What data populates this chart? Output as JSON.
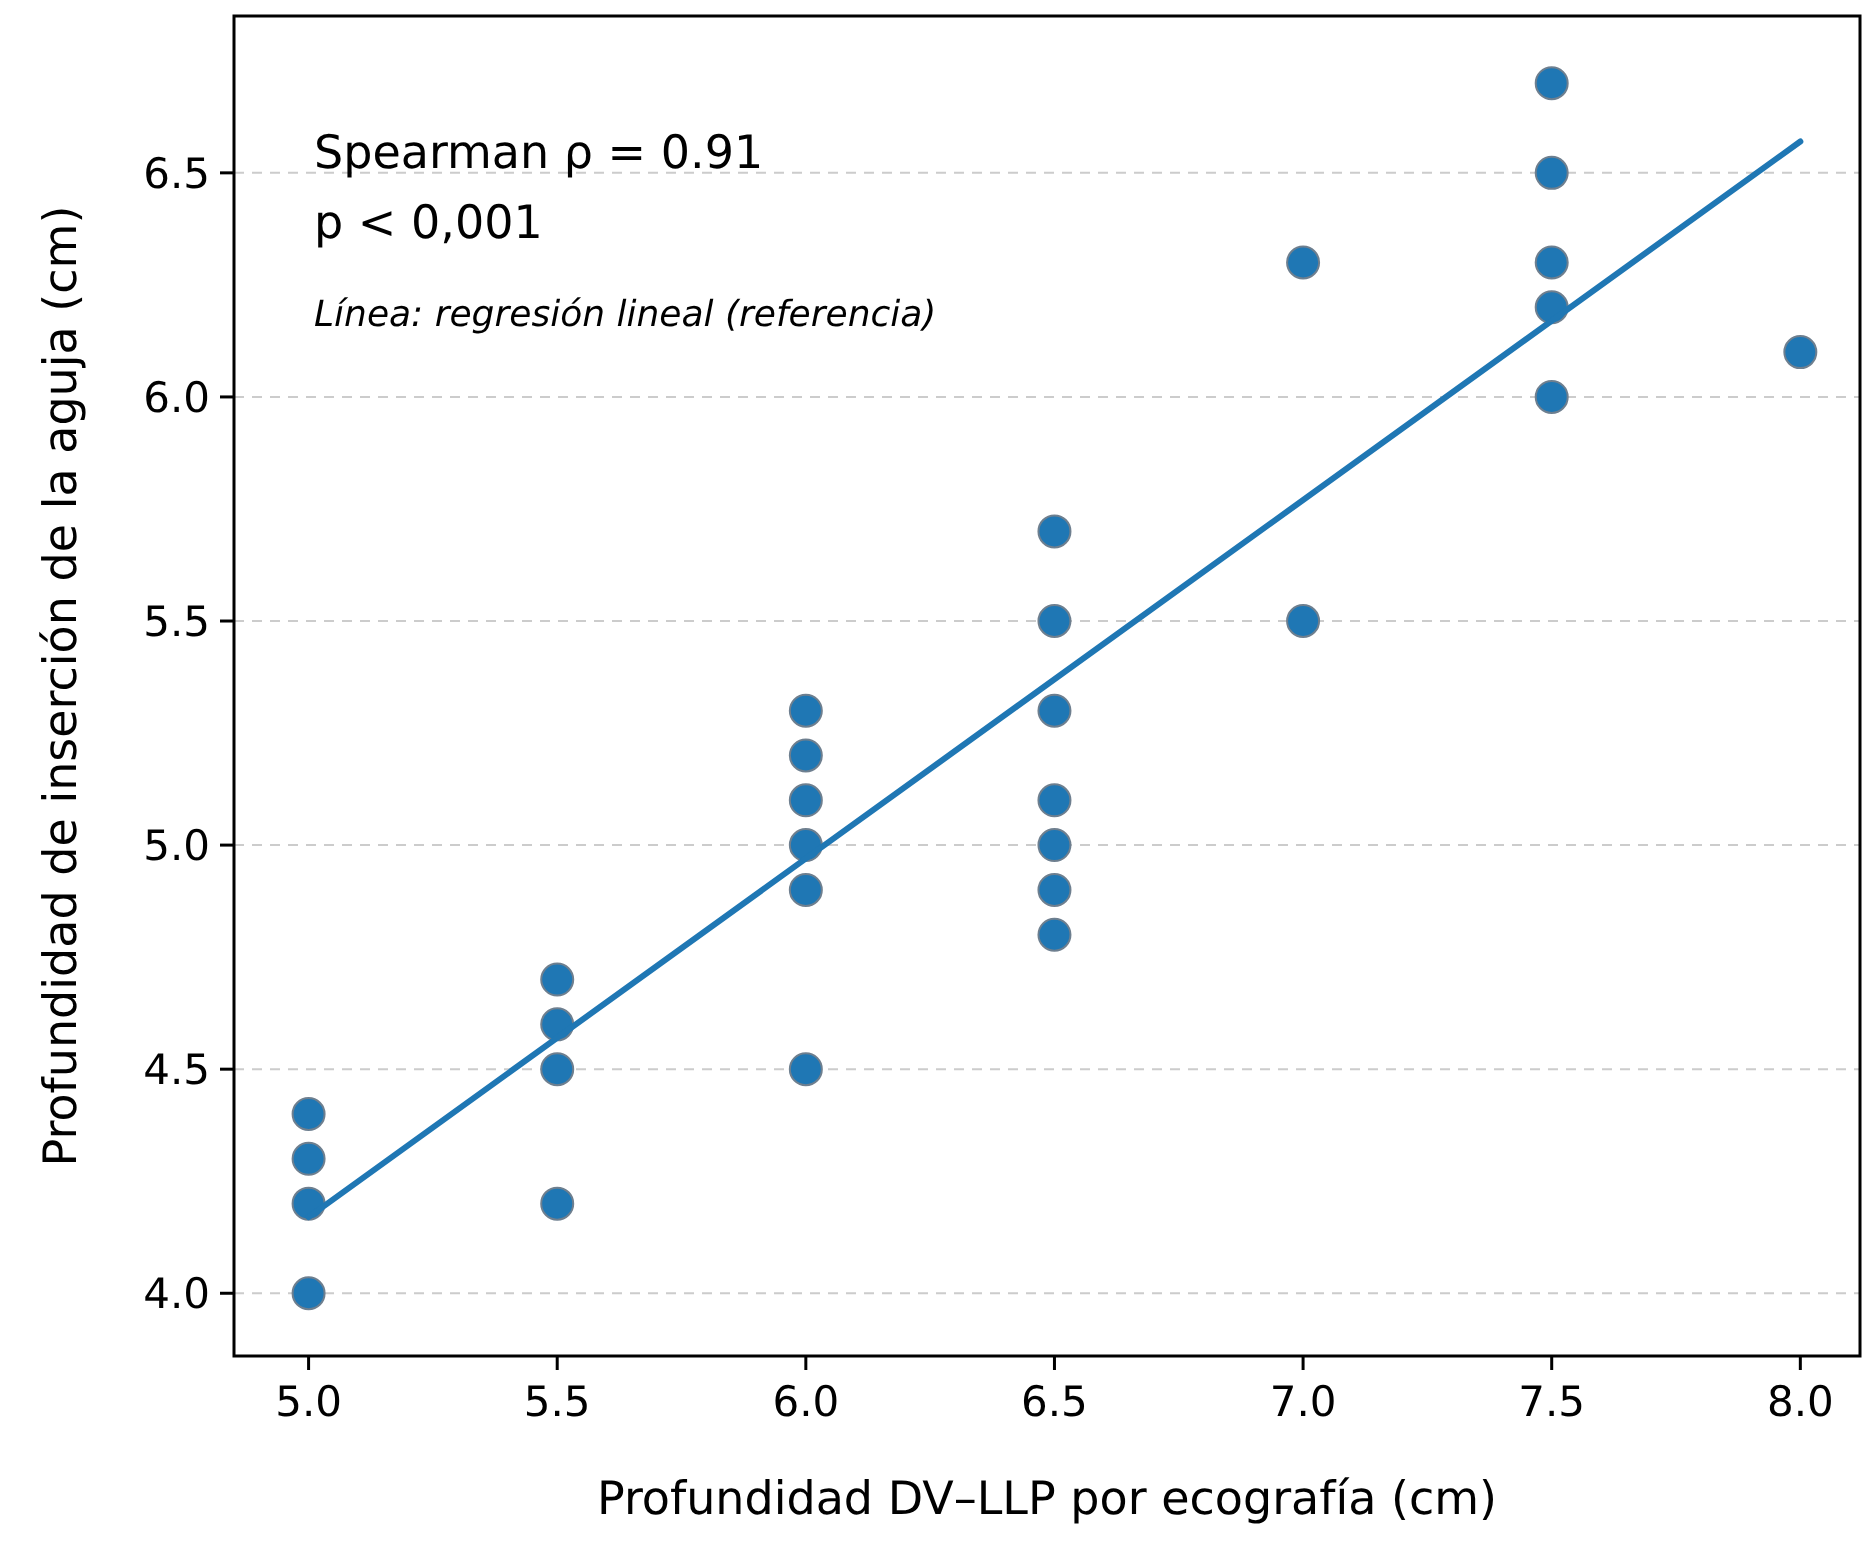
{
  "chart_data": {
    "type": "scatter",
    "xlabel": "Profundidad DV–LLP por ecografía (cm)",
    "ylabel": "Profundidad de inserción de la aguja (cm)",
    "annotations": [
      "Spearman ρ = 0.91",
      "p < 0,001",
      "Línea: regresión lineal (referencia)"
    ],
    "xlim": [
      4.85,
      8.12
    ],
    "ylim": [
      3.86,
      6.85
    ],
    "xticks": [
      {
        "value": 5,
        "label": "5.0"
      },
      {
        "value": 5.5,
        "label": "5.5"
      },
      {
        "value": 6,
        "label": "6.0"
      },
      {
        "value": 6.5,
        "label": "6.5"
      },
      {
        "value": 7,
        "label": "7.0"
      },
      {
        "value": 7.5,
        "label": "7.5"
      },
      {
        "value": 8,
        "label": "8.0"
      }
    ],
    "yticks": [
      {
        "value": 4,
        "label": "4.0"
      },
      {
        "value": 4.5,
        "label": "4.5"
      },
      {
        "value": 5,
        "label": "5.0"
      },
      {
        "value": 5.5,
        "label": "5.5"
      },
      {
        "value": 6,
        "label": "6.0"
      },
      {
        "value": 6.5,
        "label": "6.5"
      }
    ],
    "grid": "y",
    "series": [
      {
        "color": "#1f77b4",
        "marker": "circle",
        "x": [
          5,
          5,
          5,
          5,
          5.5,
          5.5,
          5.5,
          5.5,
          6,
          6,
          6,
          6,
          6,
          6,
          6.5,
          6.5,
          6.5,
          6.5,
          6.5,
          6.5,
          6.5,
          7,
          7,
          7.5,
          7.5,
          7.5,
          7.5,
          7.5,
          8
        ],
        "values": [
          4.4,
          4.3,
          4.2,
          4.0,
          4.7,
          4.6,
          4.5,
          4.2,
          5.3,
          5.2,
          5.1,
          5.0,
          4.9,
          4.5,
          5.7,
          5.5,
          5.3,
          5.1,
          5.0,
          4.9,
          4.8,
          6.3,
          5.5,
          6.7,
          6.5,
          6.3,
          6.2,
          6.0,
          6.1
        ]
      },
      {
        "type": "line",
        "color": "#1f77b4",
        "line_style": "solid",
        "x": [
          5,
          8
        ],
        "values": [
          4.17,
          6.57
        ]
      }
    ]
  }
}
